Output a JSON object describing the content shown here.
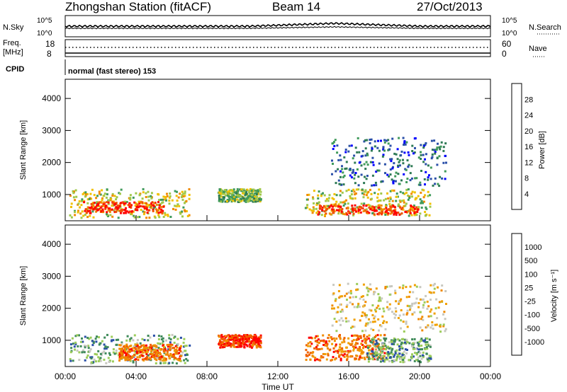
{
  "header": {
    "station": "Zhongshan Station (fitACF)",
    "beam": "Beam 14",
    "date": "27/Oct/2013"
  },
  "top_panels": {
    "nsky_label": "N.Sky",
    "nsky_ticks": [
      "10^5",
      "10^0"
    ],
    "nsearch_label": "N.Search",
    "nsearch_ticks": [
      "10^5",
      "10^0"
    ],
    "freq_label": "Freq.",
    "freq_unit": "[MHz]",
    "freq_ticks": [
      "18",
      "8"
    ],
    "nave_label": "Nave",
    "nave_ticks": [
      "60",
      "0"
    ],
    "cpid_label": "CPID",
    "cpid_text": "normal (fast stereo) 153"
  },
  "x_axis": {
    "ticks": [
      "00:00",
      "04:00",
      "08:00",
      "12:00",
      "16:00",
      "20:00",
      "00:00"
    ],
    "label": "Time UT"
  },
  "chart_data": [
    {
      "type": "heatmap",
      "ylabel": "Slant Range [km]",
      "ylim": [
        180,
        4600
      ],
      "yticks": [
        "4000",
        "3000",
        "2000",
        "1000"
      ],
      "colorbar_label": "Power [dB]",
      "colorbar_ticks": [
        "28",
        "24",
        "20",
        "16",
        "12",
        "8",
        "4"
      ],
      "colors": [
        "#0000ff",
        "#2a4fa8",
        "#2e7a55",
        "#3f9a5a",
        "#a0c84a",
        "#f0c000",
        "#f08a00",
        "#f05000",
        "#ff0000"
      ],
      "blobs": [
        {
          "t0": 0.2,
          "t1": 7.0,
          "r0": 300,
          "r1": 1200,
          "level": 5
        },
        {
          "t0": 1.0,
          "t1": 5.5,
          "r0": 450,
          "r1": 800,
          "level": 8
        },
        {
          "t0": 8.6,
          "t1": 11.0,
          "r0": 800,
          "r1": 1200,
          "level": 4
        },
        {
          "t0": 13.5,
          "t1": 20.6,
          "r0": 350,
          "r1": 1200,
          "level": 5
        },
        {
          "t0": 14.2,
          "t1": 19.9,
          "r0": 400,
          "r1": 700,
          "level": 8
        },
        {
          "t0": 15.0,
          "t1": 21.5,
          "r0": 1300,
          "r1": 2800,
          "level": 2
        }
      ]
    },
    {
      "type": "heatmap",
      "ylabel": "Slant Range [km]",
      "ylim": [
        180,
        4600
      ],
      "yticks": [
        "4000",
        "3000",
        "2000",
        "1000"
      ],
      "colorbar_label": "Velocity [m s⁻¹]",
      "colorbar_ticks": [
        "1000",
        "500",
        "100",
        "25",
        "-25",
        "-100",
        "-500",
        "-1000"
      ],
      "colors": [
        "#ff0000",
        "#f06000",
        "#f08a00",
        "#f0a000",
        "#c8c8c0",
        "#9ccc5a",
        "#3f8a5a",
        "#2a4fa8",
        "#0000ff"
      ],
      "blobs": [
        {
          "t0": 0.2,
          "t1": 7.0,
          "r0": 300,
          "r1": 1200,
          "level": 6
        },
        {
          "t0": 3.0,
          "t1": 6.5,
          "r0": 400,
          "r1": 900,
          "level": 2
        },
        {
          "t0": 8.6,
          "t1": 11.0,
          "r0": 800,
          "r1": 1200,
          "level": 1
        },
        {
          "t0": 13.5,
          "t1": 18.0,
          "r0": 400,
          "r1": 1200,
          "level": 2
        },
        {
          "t0": 17.0,
          "t1": 20.6,
          "r0": 350,
          "r1": 1100,
          "level": 6
        },
        {
          "t0": 15.0,
          "t1": 21.5,
          "r0": 1300,
          "r1": 2800,
          "level": 4
        }
      ]
    }
  ]
}
